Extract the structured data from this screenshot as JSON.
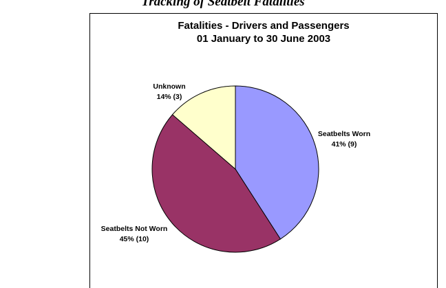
{
  "page": {
    "heading": "ℋ̲̲̲ Tracking of Seatbelt Fatalities"
  },
  "chart_data": {
    "type": "pie",
    "title": "Fatalities - Drivers and Passengers",
    "subtitle": "01 January to 30 June 2003",
    "slices": [
      {
        "label": "Seatbelts Worn",
        "value": 9,
        "percent_label": "41% (9)",
        "color": "#9999ff"
      },
      {
        "label": "Seatbelts Not Worn",
        "value": 10,
        "percent_label": "45% (10)",
        "color": "#993366"
      },
      {
        "label": "Unknown",
        "value": 3,
        "percent_label": "14% (3)",
        "color": "#ffffcc"
      }
    ],
    "start_angle": "12 o'clock",
    "direction": "clockwise",
    "legend": "none"
  }
}
